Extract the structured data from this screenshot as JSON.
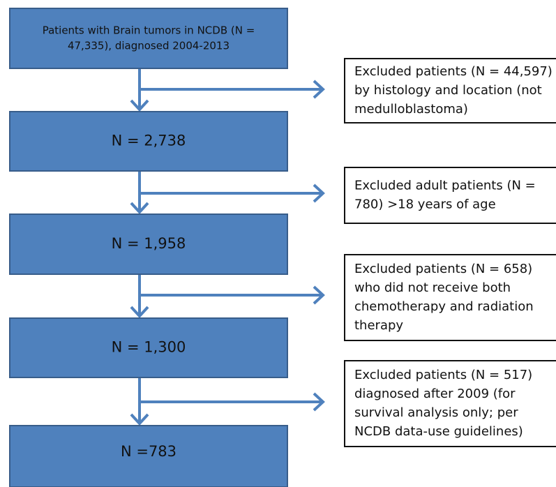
{
  "nodes": [
    {
      "lines": [
        "Patients with Brain tumors in NCDB (N =",
        "47,335), diagnosed 2004-2013"
      ]
    },
    {
      "lines": [
        "N = 2,738"
      ]
    },
    {
      "lines": [
        "N = 1,958"
      ]
    },
    {
      "lines": [
        "N = 1,300"
      ]
    },
    {
      "lines": [
        "N =783"
      ]
    }
  ],
  "exclusions": [
    {
      "lines": [
        "Excluded patients (N = 44,597)",
        "by histology and location (not",
        "medulloblastoma)"
      ]
    },
    {
      "lines": [
        "Excluded adult patients (N =",
        "780) >18 years of age"
      ]
    },
    {
      "lines": [
        "Excluded patients (N = 658)",
        "who did not receive both",
        "chemotherapy and radiation",
        "therapy"
      ]
    },
    {
      "lines": [
        "Excluded patients (N = 517)",
        "diagnosed after 2009 (for",
        "survival analysis only; per",
        "NCDB data-use guidelines)"
      ]
    }
  ]
}
